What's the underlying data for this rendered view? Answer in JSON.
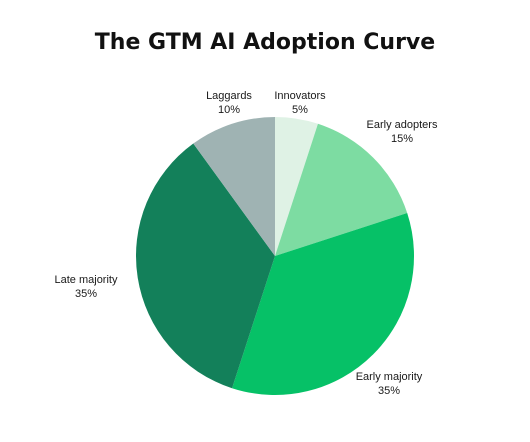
{
  "chart_data": {
    "type": "pie",
    "title": "The GTM AI Adoption Curve",
    "slices": [
      {
        "label": "Innovators",
        "value": 5,
        "value_label": "5%",
        "color": "#dff2e5"
      },
      {
        "label": "Early adopters",
        "value": 15,
        "value_label": "15%",
        "color": "#7ddca2"
      },
      {
        "label": "Early majority",
        "value": 35,
        "value_label": "35%",
        "color": "#06c167"
      },
      {
        "label": "Late majority",
        "value": 35,
        "value_label": "35%",
        "color": "#13805a"
      },
      {
        "label": "Laggards",
        "value": 10,
        "value_label": "10%",
        "color": "#9fb3b3"
      }
    ],
    "start_angle_deg": 0,
    "direction": "clockwise",
    "legend": "none"
  }
}
